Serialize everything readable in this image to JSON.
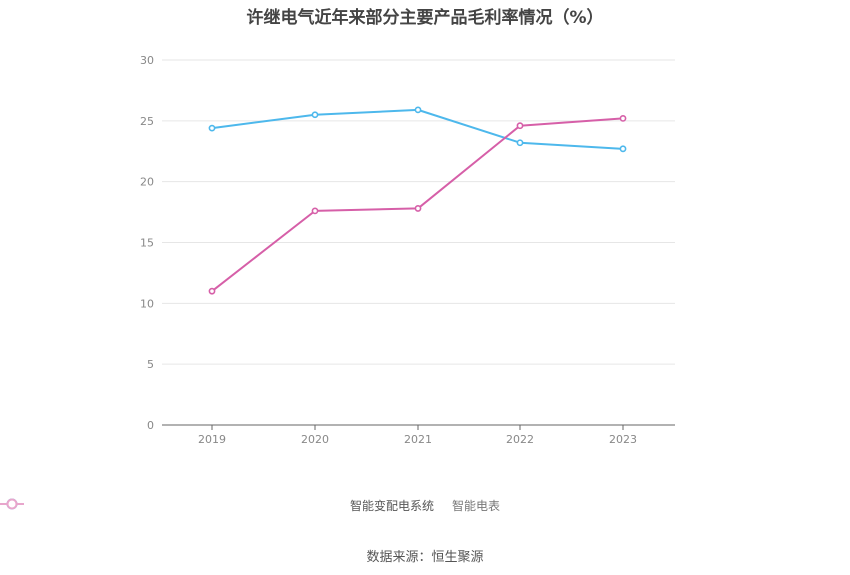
{
  "chart_data": {
    "type": "line",
    "title": "许继电气近年来部分主要产品毛利率情况（%）",
    "categories": [
      "2019",
      "2020",
      "2021",
      "2022",
      "2023"
    ],
    "ylim": [
      0,
      30
    ],
    "yticks": [
      0,
      5,
      10,
      15,
      20,
      25,
      30
    ],
    "grid": true,
    "legend_position": "bottom",
    "series": [
      {
        "name": "智能变配电系统",
        "color": "#4db8ec",
        "values": [
          24.4,
          25.5,
          25.9,
          23.2,
          22.7
        ]
      },
      {
        "name": "智能电表",
        "color": "#d65fa8",
        "values": [
          11.0,
          17.6,
          17.8,
          24.6,
          25.2
        ]
      }
    ],
    "source": "数据来源：恒生聚源"
  }
}
